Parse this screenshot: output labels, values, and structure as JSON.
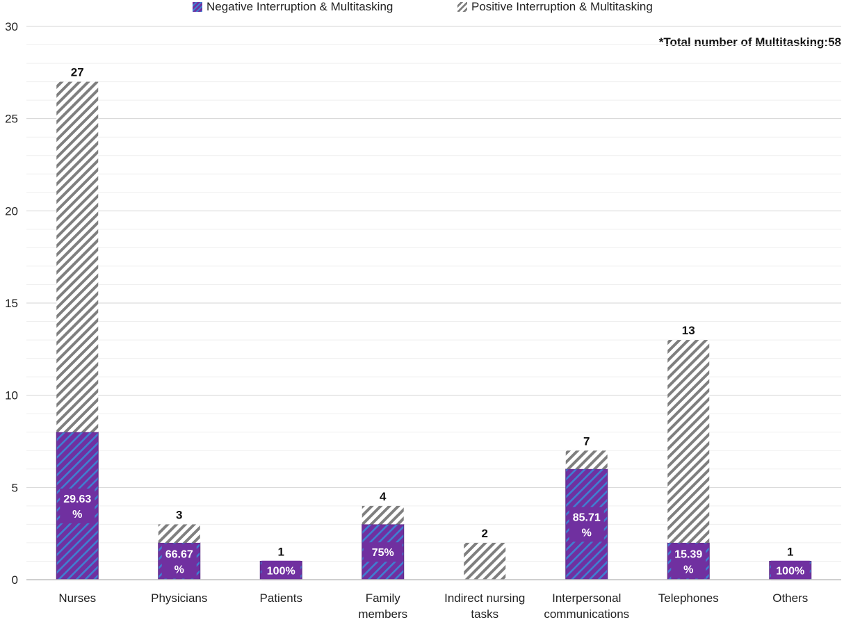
{
  "note": "*Total number of Multitasking:58",
  "colors": {
    "negative_fill": "#7030a0",
    "negative_hatch": "#3f7fd1",
    "positive_hatch": "#7f7f7f",
    "grid": "#e3e3e3",
    "axis": "#bfbfbf"
  },
  "chart_data": {
    "type": "bar",
    "stacked": true,
    "categories": [
      [
        "Nurses"
      ],
      [
        "Physicians"
      ],
      [
        "Patients"
      ],
      [
        "Family",
        "members"
      ],
      [
        "Indirect nursing",
        "tasks"
      ],
      [
        "Interpersonal",
        "communications"
      ],
      [
        "Telephones"
      ],
      [
        "Others"
      ]
    ],
    "series": [
      {
        "name": "Negative Interruption & Multitasking",
        "values": [
          8,
          2,
          1,
          3,
          0,
          6,
          2,
          1
        ]
      },
      {
        "name": "Positive Interruption & Multitasking",
        "values": [
          19,
          1,
          0,
          1,
          2,
          1,
          11,
          0
        ]
      }
    ],
    "totals": [
      "27",
      "3",
      "1",
      "4",
      "2",
      "7",
      "13",
      "1"
    ],
    "percent_labels": [
      [
        "29.63",
        "%"
      ],
      [
        "66.67",
        "%"
      ],
      [
        "100%"
      ],
      [
        "75%"
      ],
      [],
      [
        "85.71",
        "%"
      ],
      [
        "15.39",
        "%"
      ],
      [
        "100%"
      ]
    ],
    "ylim": [
      0,
      30
    ],
    "yticks": [
      0,
      5,
      10,
      15,
      20,
      25,
      30
    ],
    "minor_grid_step": 1,
    "legend_position": "top-center"
  }
}
